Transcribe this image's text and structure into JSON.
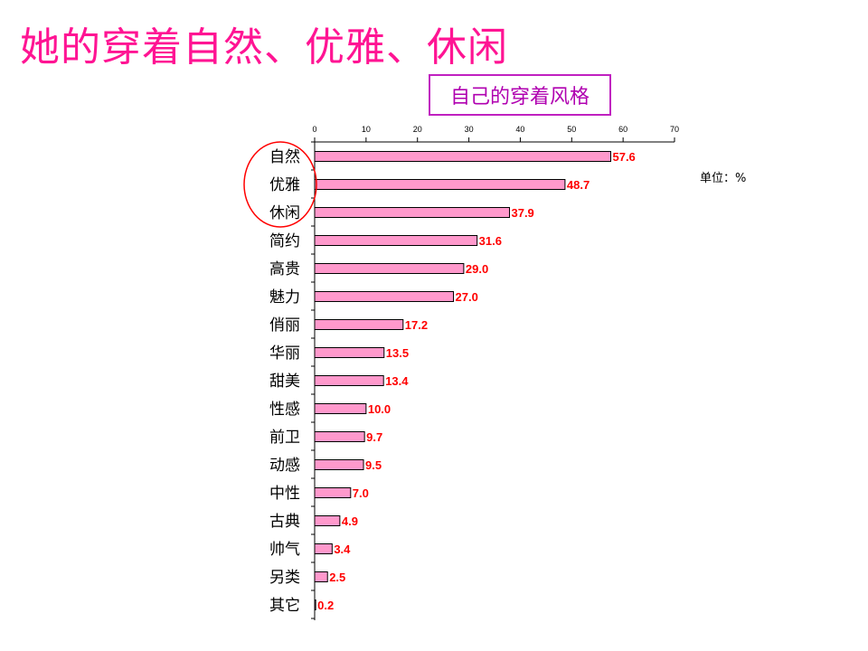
{
  "headline": "她的穿着自然、优雅、休闲",
  "chart_data": {
    "type": "bar",
    "orientation": "horizontal",
    "title": "自己的穿着风格",
    "unit_label": "单位：%",
    "categories": [
      "自然",
      "优雅",
      "休闲",
      "简约",
      "高贵",
      "魅力",
      "俏丽",
      "华丽",
      "甜美",
      "性感",
      "前卫",
      "动感",
      "中性",
      "古典",
      "帅气",
      "另类",
      "其它"
    ],
    "values": [
      57.6,
      48.7,
      37.9,
      31.6,
      29.0,
      27.0,
      17.2,
      13.5,
      13.4,
      10.0,
      9.7,
      9.5,
      7.0,
      4.9,
      3.4,
      2.5,
      0.2
    ],
    "value_labels": [
      "57.6",
      "48.7",
      "37.9",
      "31.6",
      "29.0",
      "27.0",
      "17.2",
      "13.5",
      "13.4",
      "10.0",
      "9.7",
      "9.5",
      "7.0",
      "4.9",
      "3.4",
      "2.5",
      "0.2"
    ],
    "xlim": [
      0,
      70
    ],
    "xticks": [
      0,
      10,
      20,
      30,
      40,
      50,
      60,
      70
    ],
    "x_axis_position": "top",
    "grid": false,
    "legend": "none",
    "highlight": "circle around 自然, 优雅, 休闲",
    "colors": {
      "bar_fill": "#ff99cc",
      "bar_stroke": "#000000",
      "value_label": "#ff0000",
      "headline": "#ff1493",
      "title": "#b000b0",
      "highlight_circle": "#ff0000"
    }
  }
}
